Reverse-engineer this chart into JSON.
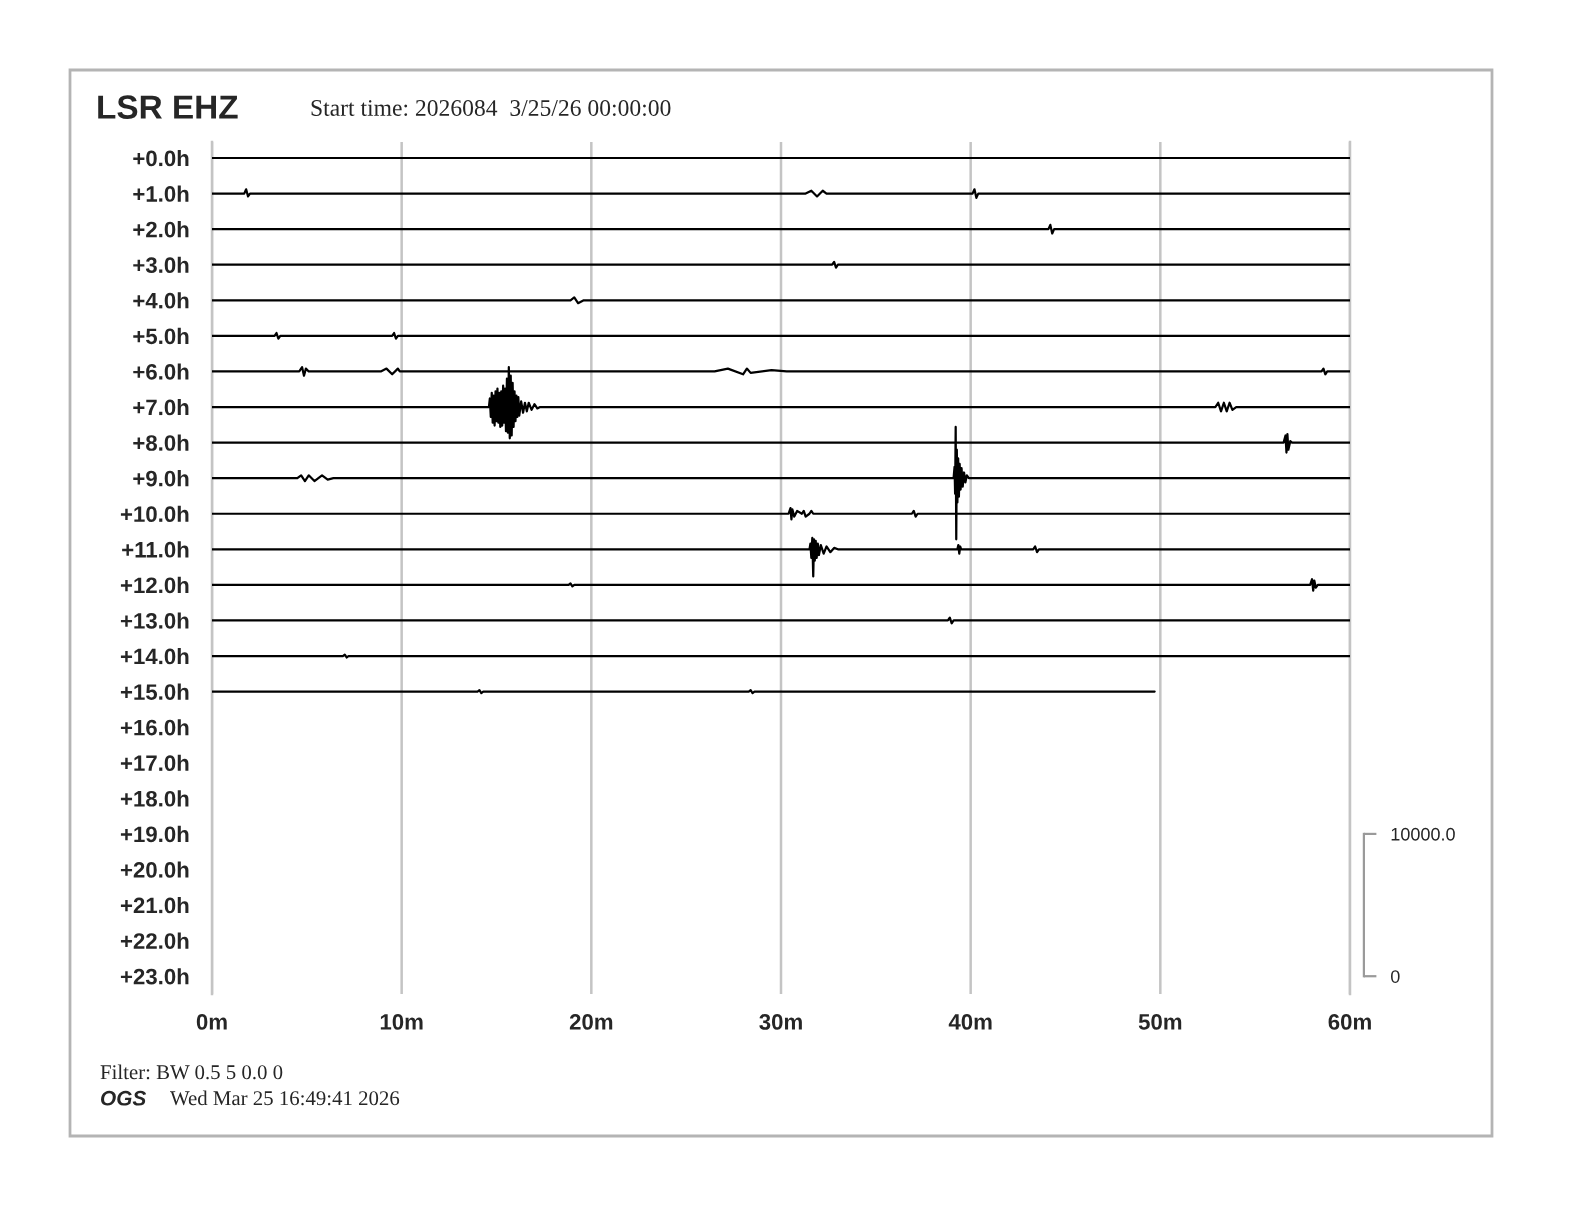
{
  "chart_data": {
    "type": "line",
    "title": "LSR EHZ",
    "subtitle": "Start time: 2026084  3/25/26 00:00:00",
    "annotations": [
      "Filter: BW 0.5 5 0.0 0",
      "OGS",
      "Wed Mar 25 16:49:41 2026"
    ],
    "xlim": [
      0,
      60
    ],
    "xticks": [
      {
        "value": 0,
        "label": "0m"
      },
      {
        "value": 10,
        "label": "10m"
      },
      {
        "value": 20,
        "label": "20m"
      },
      {
        "value": 30,
        "label": "30m"
      },
      {
        "value": 40,
        "label": "40m"
      },
      {
        "value": 50,
        "label": "50m"
      },
      {
        "value": 60,
        "label": "60m"
      }
    ],
    "ylim": [
      23.5,
      -0.45
    ],
    "yticks": [
      {
        "value": 0,
        "label": "+0.0h"
      },
      {
        "value": 1,
        "label": "+1.0h"
      },
      {
        "value": 2,
        "label": "+2.0h"
      },
      {
        "value": 3,
        "label": "+3.0h"
      },
      {
        "value": 4,
        "label": "+4.0h"
      },
      {
        "value": 5,
        "label": "+5.0h"
      },
      {
        "value": 6,
        "label": "+6.0h"
      },
      {
        "value": 7,
        "label": "+7.0h"
      },
      {
        "value": 8,
        "label": "+8.0h"
      },
      {
        "value": 9,
        "label": "+9.0h"
      },
      {
        "value": 10,
        "label": "+10.0h"
      },
      {
        "value": 11,
        "label": "+11.0h"
      },
      {
        "value": 12,
        "label": "+12.0h"
      },
      {
        "value": 13,
        "label": "+13.0h"
      },
      {
        "value": 14,
        "label": "+14.0h"
      },
      {
        "value": 15,
        "label": "+15.0h"
      },
      {
        "value": 16,
        "label": "+16.0h"
      },
      {
        "value": 17,
        "label": "+17.0h"
      },
      {
        "value": 18,
        "label": "+18.0h"
      },
      {
        "value": 19,
        "label": "+19.0h"
      },
      {
        "value": 20,
        "label": "+20.0h"
      },
      {
        "value": 21,
        "label": "+21.0h"
      },
      {
        "value": 22,
        "label": "+22.0h"
      },
      {
        "value": 23,
        "label": "+23.0h"
      }
    ],
    "y2lim": [
      -1250,
      58625
    ],
    "y2ticks": [
      0,
      {
        "value": 10000,
        "label": "10000.0"
      }
    ],
    "grid": "x",
    "line_style": "solid",
    "series": [
      {
        "color": "#000000",
        "axis": "y2",
        "x": [
          0,
          60
        ],
        "values": [
          57500,
          57500
        ]
      },
      {
        "color": "#000000",
        "axis": "y2",
        "x": [
          0,
          1.7,
          1.8,
          1.9,
          2.0,
          31.3,
          31.6,
          31.9,
          32.2,
          32.4,
          40.1,
          40.2,
          40.3,
          40.4,
          60
        ],
        "values": [
          55000,
          55000,
          55300,
          54800,
          55000,
          55000,
          55200,
          54800,
          55200,
          55000,
          55000,
          55300,
          54700,
          55000,
          55000
        ]
      },
      {
        "color": "#000000",
        "axis": "y2",
        "x": [
          0,
          44.1,
          44.2,
          44.3,
          44.4,
          60
        ],
        "values": [
          52500,
          52500,
          52800,
          52200,
          52500,
          52500
        ]
      },
      {
        "color": "#000000",
        "axis": "y2",
        "x": [
          0,
          32.7,
          32.8,
          32.9,
          33.0,
          60
        ],
        "values": [
          50000,
          50000,
          50200,
          49800,
          50000,
          50000
        ]
      },
      {
        "color": "#000000",
        "axis": "y2",
        "x": [
          0,
          18.9,
          19.1,
          19.3,
          19.6,
          60
        ],
        "values": [
          47500,
          47500,
          47700,
          47300,
          47500,
          47500
        ]
      },
      {
        "color": "#000000",
        "axis": "y2",
        "x": [
          0,
          3.3,
          3.4,
          3.5,
          3.6,
          9.5,
          9.6,
          9.7,
          9.8,
          60
        ],
        "values": [
          45000,
          45000,
          45200,
          44800,
          45000,
          45000,
          45200,
          44800,
          45000,
          45000
        ]
      },
      {
        "color": "#000000",
        "axis": "y2",
        "x": [
          0,
          4.6,
          4.75,
          4.85,
          4.95,
          5.1,
          8.9,
          9.2,
          9.5,
          9.8,
          9.9,
          26.5,
          27.2,
          28.0,
          28.2,
          28.4,
          29.5,
          30.3,
          58.5,
          58.6,
          58.7,
          58.8,
          60
        ],
        "values": [
          42500,
          42500,
          42800,
          42200,
          42700,
          42500,
          42500,
          42700,
          42300,
          42700,
          42500,
          42500,
          42700,
          42300,
          42700,
          42400,
          42600,
          42500,
          42500,
          42700,
          42300,
          42500,
          42500
        ]
      },
      {
        "color": "#000000",
        "axis": "y2",
        "x": [
          0,
          14.6,
          14.65,
          14.7,
          14.75,
          14.8,
          14.85,
          14.9,
          14.95,
          15.0,
          15.05,
          15.1,
          15.15,
          15.2,
          15.25,
          15.3,
          15.35,
          15.4,
          15.45,
          15.5,
          15.55,
          15.6,
          15.65,
          15.7,
          15.75,
          15.8,
          15.85,
          15.9,
          15.95,
          16.0,
          16.05,
          16.1,
          16.15,
          16.2,
          16.3,
          16.4,
          16.5,
          16.6,
          16.7,
          16.85,
          17.0,
          17.15,
          17.3,
          52.9,
          53.05,
          53.2,
          53.35,
          53.5,
          53.65,
          53.8,
          54.0,
          60
        ],
        "values": [
          40000,
          40000,
          40600,
          39300,
          41000,
          38900,
          40800,
          38700,
          41100,
          39000,
          41300,
          38900,
          41000,
          38600,
          41100,
          38700,
          41500,
          38900,
          41300,
          38300,
          42000,
          38200,
          42800,
          37800,
          42200,
          38000,
          41700,
          38600,
          41100,
          39000,
          40800,
          39300,
          40700,
          39400,
          40400,
          39600,
          40300,
          39700,
          40300,
          39800,
          40200,
          39900,
          40000,
          40000,
          40300,
          39700,
          40300,
          39700,
          40300,
          39800,
          40000,
          40000
        ]
      },
      {
        "color": "#000000",
        "axis": "y2",
        "x": [
          0,
          56.5,
          56.6,
          56.65,
          56.7,
          56.75,
          56.85,
          56.95,
          60
        ],
        "values": [
          37500,
          37500,
          38000,
          36800,
          38100,
          37000,
          37600,
          37500,
          37500
        ]
      },
      {
        "color": "#000000",
        "axis": "y2",
        "x": [
          0,
          4.5,
          4.7,
          4.9,
          5.1,
          5.4,
          5.8,
          6.1,
          6.4,
          39.1,
          39.15,
          39.18,
          39.21,
          39.24,
          39.27,
          39.3,
          39.34,
          39.38,
          39.42,
          39.47,
          39.52,
          39.58,
          39.65,
          39.72,
          39.8,
          39.9,
          60
        ],
        "values": [
          35000,
          35000,
          35200,
          34800,
          35200,
          34800,
          35200,
          34900,
          35000,
          35000,
          35800,
          33900,
          38600,
          30700,
          37000,
          33300,
          36400,
          33700,
          36000,
          34200,
          35700,
          34400,
          35400,
          34700,
          35200,
          35000,
          35000
        ]
      },
      {
        "color": "#000000",
        "axis": "y2",
        "x": [
          0,
          30.4,
          30.5,
          30.55,
          30.6,
          30.7,
          30.85,
          31.1,
          31.2,
          31.3,
          31.5,
          31.6,
          31.7,
          36.9,
          37.0,
          37.1,
          37.2,
          60
        ],
        "values": [
          32500,
          32500,
          32900,
          32100,
          32800,
          32300,
          32700,
          32500,
          32700,
          32300,
          32500,
          32700,
          32500,
          32500,
          32700,
          32300,
          32500,
          32500
        ]
      },
      {
        "color": "#000000",
        "axis": "y2",
        "x": [
          0,
          31.5,
          31.55,
          31.6,
          31.65,
          31.7,
          31.74,
          31.78,
          31.83,
          31.88,
          31.94,
          32.0,
          32.1,
          32.25,
          32.4,
          32.6,
          32.8,
          33.0,
          39.3,
          39.35,
          39.4,
          39.45,
          39.5,
          43.3,
          43.4,
          43.5,
          43.6,
          60
        ],
        "values": [
          30000,
          30000,
          30400,
          29400,
          30800,
          28100,
          30700,
          29200,
          30600,
          29400,
          30400,
          29600,
          30300,
          29700,
          30200,
          29800,
          30100,
          30000,
          30000,
          30300,
          29700,
          30200,
          30000,
          30000,
          30200,
          29800,
          30000,
          30000
        ]
      },
      {
        "color": "#000000",
        "axis": "y2",
        "x": [
          0,
          18.8,
          18.9,
          19.0,
          19.1,
          57.9,
          58.0,
          58.06,
          58.12,
          58.2,
          58.3,
          60
        ],
        "values": [
          27500,
          27500,
          27600,
          27400,
          27500,
          27500,
          27900,
          27100,
          27800,
          27300,
          27500,
          27500
        ]
      },
      {
        "color": "#000000",
        "axis": "y2",
        "x": [
          0,
          38.8,
          38.9,
          39.0,
          39.1,
          60
        ],
        "values": [
          25000,
          25000,
          25200,
          24800,
          25000,
          25000
        ]
      },
      {
        "color": "#000000",
        "axis": "y2",
        "x": [
          0,
          6.9,
          7.0,
          7.1,
          7.2,
          60
        ],
        "values": [
          22500,
          22500,
          22600,
          22400,
          22500,
          22500
        ]
      },
      {
        "color": "#000000",
        "axis": "y2",
        "x": [
          0,
          14.0,
          14.1,
          14.2,
          14.3,
          28.3,
          28.4,
          28.5,
          28.6,
          49.7
        ],
        "values": [
          20000,
          20000,
          20100,
          19900,
          20000,
          20000,
          20100,
          19900,
          20000,
          20000
        ]
      }
    ]
  }
}
